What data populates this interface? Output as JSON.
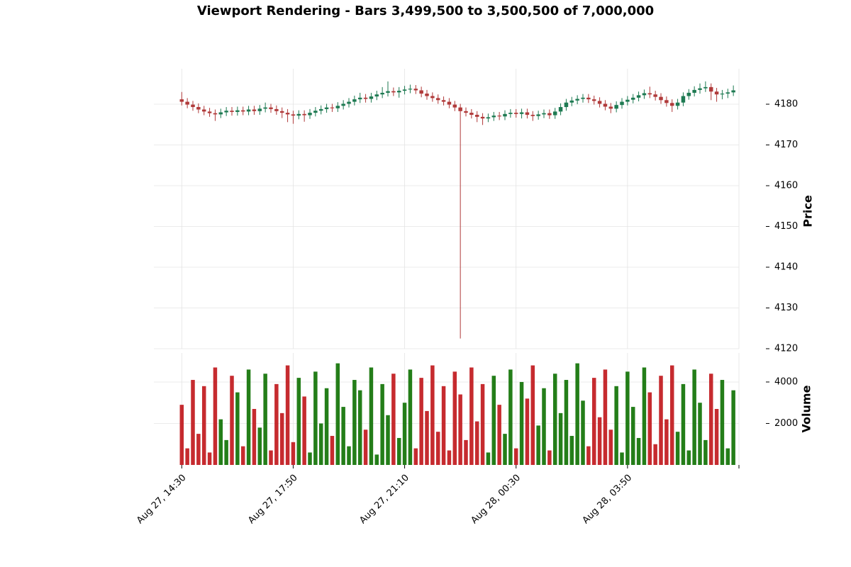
{
  "chart_data": {
    "type": "candlestick",
    "title": "Viewport Rendering - Bars 3,499,500 to 3,500,500 of 7,000,000",
    "ylabel": "Price",
    "volume_ylabel": "Volume",
    "x": [
      0,
      10,
      20,
      30,
      40,
      50,
      60,
      70,
      80,
      90,
      100,
      110,
      120,
      130,
      140,
      150,
      160,
      170,
      180,
      190,
      200,
      210,
      220,
      230,
      240,
      250,
      260,
      270,
      280,
      290,
      300,
      310,
      320,
      330,
      340,
      350,
      360,
      370,
      380,
      390,
      400,
      410,
      420,
      430,
      440,
      450,
      460,
      470,
      480,
      490,
      500,
      510,
      520,
      530,
      540,
      550,
      560,
      570,
      580,
      590,
      600,
      610,
      620,
      630,
      640,
      650,
      660,
      670,
      680,
      690,
      700,
      710,
      720,
      730,
      740,
      750,
      760,
      770,
      780,
      790,
      800,
      810,
      820,
      830,
      840,
      850,
      860,
      870,
      880,
      890,
      900,
      910,
      920,
      930,
      940,
      950,
      960,
      970,
      980,
      990
    ],
    "open": [
      4181.2,
      4180.6,
      4179.9,
      4179.3,
      4178.7,
      4178.2,
      4177.8,
      4177.5,
      4178.0,
      4178.4,
      4178.1,
      4178.5,
      4178.2,
      4178.7,
      4178.3,
      4178.9,
      4179.2,
      4178.8,
      4178.3,
      4177.9,
      4177.5,
      4177.2,
      4177.6,
      4177.3,
      4177.9,
      4178.4,
      4178.8,
      4179.2,
      4179.0,
      4179.6,
      4180.1,
      4180.6,
      4181.2,
      4181.6,
      4181.3,
      4181.9,
      4182.4,
      4182.8,
      4183.2,
      4182.9,
      4183.3,
      4183.6,
      4183.8,
      4183.4,
      4182.6,
      4182.0,
      4181.5,
      4181.0,
      4180.6,
      4179.9,
      4179.2,
      4178.3,
      4177.9,
      4177.4,
      4176.9,
      4176.5,
      4176.8,
      4177.2,
      4177.0,
      4177.6,
      4177.9,
      4177.6,
      4178.0,
      4177.4,
      4177.1,
      4177.5,
      4177.8,
      4177.3,
      4178.2,
      4179.3,
      4180.4,
      4180.9,
      4181.3,
      4181.6,
      4181.2,
      4180.8,
      4180.1,
      4179.4,
      4178.9,
      4179.8,
      4180.6,
      4181.1,
      4181.6,
      4182.2,
      4182.7,
      4182.4,
      4181.8,
      4181.0,
      4180.3,
      4179.6,
      4180.4,
      4182.0,
      4182.8,
      4183.5,
      4183.9,
      4184.2,
      4183.1,
      4182.4,
      4182.6,
      4182.9
    ],
    "high": [
      4183.0,
      4181.5,
      4180.8,
      4180.2,
      4179.6,
      4179.1,
      4178.7,
      4178.9,
      4179.3,
      4179.3,
      4179.4,
      4179.4,
      4179.6,
      4179.6,
      4179.8,
      4180.4,
      4180.1,
      4179.7,
      4179.2,
      4178.8,
      4178.4,
      4178.5,
      4178.5,
      4178.8,
      4179.3,
      4179.7,
      4180.1,
      4180.1,
      4180.5,
      4181.0,
      4181.5,
      4182.1,
      4182.8,
      4182.5,
      4182.8,
      4183.3,
      4184.2,
      4185.6,
      4184.1,
      4184.2,
      4184.5,
      4184.8,
      4184.7,
      4184.3,
      4183.5,
      4182.9,
      4182.4,
      4181.9,
      4181.5,
      4180.8,
      4180.1,
      4179.2,
      4178.8,
      4178.3,
      4177.8,
      4177.7,
      4178.1,
      4178.1,
      4178.5,
      4178.8,
      4178.8,
      4178.9,
      4178.9,
      4178.3,
      4178.4,
      4178.7,
      4178.7,
      4179.1,
      4180.2,
      4181.3,
      4181.8,
      4182.2,
      4182.5,
      4182.5,
      4182.1,
      4181.7,
      4181.0,
      4180.3,
      4180.7,
      4181.5,
      4182.0,
      4182.5,
      4183.1,
      4183.6,
      4184.3,
      4183.3,
      4182.7,
      4181.9,
      4181.2,
      4181.3,
      4182.9,
      4183.7,
      4184.4,
      4185.1,
      4185.6,
      4185.1,
      4184.0,
      4183.5,
      4183.8,
      4184.6
    ],
    "low": [
      4179.7,
      4179.0,
      4178.4,
      4177.8,
      4177.3,
      4176.9,
      4175.9,
      4176.6,
      4177.1,
      4177.2,
      4177.2,
      4177.3,
      4177.3,
      4177.4,
      4177.4,
      4178.0,
      4177.9,
      4177.4,
      4176.6,
      4175.6,
      4175.2,
      4176.3,
      4175.7,
      4176.4,
      4177.0,
      4177.5,
      4177.9,
      4178.1,
      4178.1,
      4178.7,
      4179.2,
      4179.7,
      4180.3,
      4180.4,
      4180.4,
      4181.0,
      4181.5,
      4181.9,
      4182.0,
      4181.6,
      4182.4,
      4182.7,
      4182.5,
      4181.7,
      4181.1,
      4180.6,
      4180.1,
      4179.7,
      4179.0,
      4178.3,
      4122.5,
      4177.0,
      4176.5,
      4175.6,
      4174.9,
      4175.6,
      4175.9,
      4176.1,
      4176.1,
      4176.7,
      4176.7,
      4176.5,
      4176.5,
      4175.9,
      4176.2,
      4176.6,
      4176.4,
      4176.4,
      4177.3,
      4178.4,
      4179.5,
      4180.0,
      4180.4,
      4180.3,
      4179.9,
      4179.2,
      4178.5,
      4177.8,
      4178.0,
      4178.9,
      4179.7,
      4180.2,
      4180.7,
      4181.3,
      4181.5,
      4180.9,
      4180.1,
      4179.4,
      4178.1,
      4178.7,
      4179.5,
      4181.1,
      4181.9,
      4182.6,
      4183.0,
      4181.0,
      4180.6,
      4181.2,
      4181.5,
      4182.0
    ],
    "close": [
      4180.6,
      4179.9,
      4179.3,
      4178.7,
      4178.2,
      4177.8,
      4177.5,
      4178.0,
      4178.4,
      4178.1,
      4178.5,
      4178.2,
      4178.7,
      4178.3,
      4178.9,
      4179.2,
      4178.8,
      4178.3,
      4177.9,
      4177.5,
      4177.2,
      4177.6,
      4177.3,
      4177.9,
      4178.4,
      4178.8,
      4179.2,
      4179.0,
      4179.6,
      4180.1,
      4180.6,
      4181.2,
      4181.6,
      4181.3,
      4181.9,
      4182.4,
      4182.8,
      4183.2,
      4182.9,
      4183.3,
      4183.6,
      4183.8,
      4183.4,
      4182.6,
      4182.0,
      4181.5,
      4181.0,
      4180.6,
      4179.9,
      4179.2,
      4178.3,
      4177.9,
      4177.4,
      4176.9,
      4176.5,
      4176.8,
      4177.2,
      4177.0,
      4177.6,
      4177.9,
      4177.6,
      4178.0,
      4177.4,
      4177.1,
      4177.5,
      4177.8,
      4177.3,
      4178.2,
      4179.3,
      4180.4,
      4180.9,
      4181.3,
      4181.6,
      4181.2,
      4180.8,
      4180.1,
      4179.4,
      4178.9,
      4179.8,
      4180.6,
      4181.1,
      4181.6,
      4182.2,
      4182.7,
      4182.4,
      4181.8,
      4181.0,
      4180.3,
      4179.6,
      4180.4,
      4182.0,
      4182.8,
      4183.5,
      4183.9,
      4184.2,
      4183.1,
      4182.4,
      4182.6,
      4182.9,
      4183.4
    ],
    "volume": [
      2900,
      800,
      4100,
      1500,
      3800,
      600,
      4700,
      2200,
      1200,
      4300,
      3500,
      900,
      4600,
      2700,
      1800,
      4400,
      700,
      3900,
      2500,
      4800,
      1100,
      4200,
      3300,
      600,
      4500,
      2000,
      3700,
      1400,
      4900,
      2800,
      900,
      4100,
      3600,
      1700,
      4700,
      500,
      3900,
      2400,
      4400,
      1300,
      3000,
      4600,
      800,
      4200,
      2600,
      4800,
      1600,
      3800,
      700,
      4500,
      3400,
      1200,
      4700,
      2100,
      3900,
      600,
      4300,
      2900,
      1500,
      4600,
      800,
      4000,
      3200,
      4800,
      1900,
      3700,
      700,
      4400,
      2500,
      4100,
      1400,
      4900,
      3100,
      900,
      4200,
      2300,
      4600,
      1700,
      3800,
      600,
      4500,
      2800,
      1300,
      4700,
      3500,
      1000,
      4300,
      2200,
      4800,
      1600,
      3900,
      700,
      4600,
      3000,
      1200,
      4400,
      2700,
      4100,
      800,
      3600
    ],
    "xlim": [
      -50,
      1000
    ],
    "xticks": [
      {
        "value": 0,
        "label": "Aug 27, 14:30"
      },
      {
        "value": 200,
        "label": "Aug 27, 17:50"
      },
      {
        "value": 400,
        "label": "Aug 27, 21:10"
      },
      {
        "value": 600,
        "label": "Aug 28, 00:30"
      },
      {
        "value": 800,
        "label": "Aug 28, 03:50"
      },
      {
        "value": 1000,
        "label": null
      }
    ],
    "ylim": [
      4120,
      4188.7
    ],
    "yticks": [
      4120,
      4130,
      4140,
      4150,
      4160,
      4170,
      4180
    ],
    "volume_ylim": [
      0,
      5400
    ],
    "volume_yticks": [
      2000,
      4000
    ],
    "up_color": "#1e7a52",
    "down_color": "#b03a3a",
    "volume_up_color": "#0c7000",
    "volume_down_color": "#c01418",
    "grid": true
  }
}
